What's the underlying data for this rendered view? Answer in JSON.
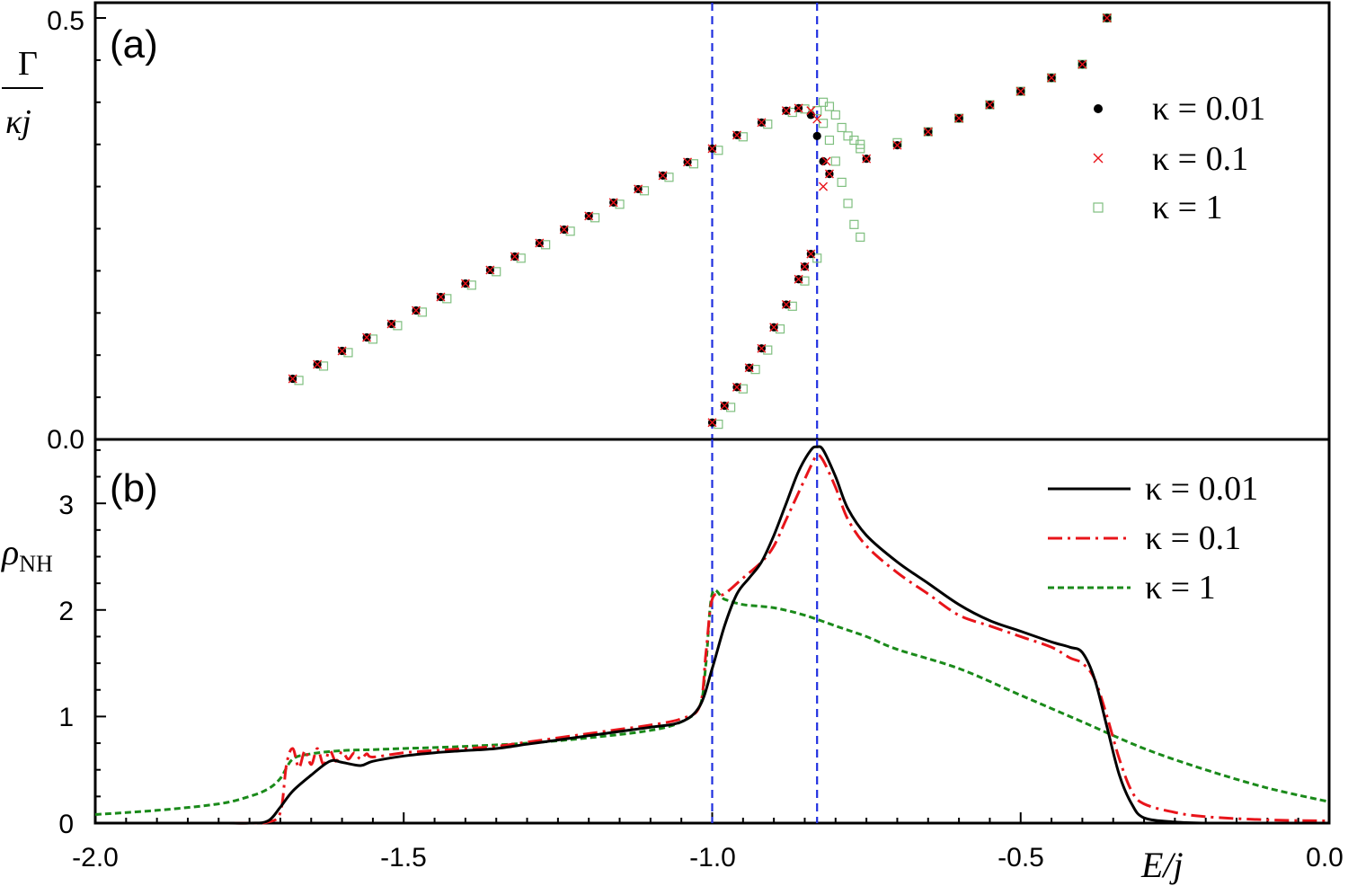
{
  "chart_data": [
    {
      "type": "scatter",
      "panel_label": "(a)",
      "ylabel": "Γ/κj",
      "xlim": [
        -2.0,
        0.0
      ],
      "ylim": [
        0.0,
        0.5
      ],
      "y_ticks": [
        "0.0",
        "0.5"
      ],
      "legend": {
        "position": "right",
        "entries": [
          "κ = 0.01",
          "κ = 0.1",
          "κ = 1"
        ]
      },
      "reference_lines_x": [
        -1.0,
        -0.83
      ],
      "colors": {
        "k001": "#000000",
        "k01": "#e8141a",
        "k1": "#7fbf7f",
        "ref": "#1f2fe0"
      },
      "series": [
        {
          "name": "κ = 0.01",
          "marker": "dot",
          "branches": [
            {
              "x": [
                -1.68,
                -1.64,
                -1.6,
                -1.56,
                -1.52,
                -1.48,
                -1.44,
                -1.4,
                -1.36,
                -1.32,
                -1.28,
                -1.24,
                -1.2,
                -1.16,
                -1.12,
                -1.08,
                -1.04,
                -1.0,
                -0.96,
                -0.92,
                -0.88,
                -0.86,
                -0.84
              ],
              "y": [
                0.072,
                0.089,
                0.105,
                0.121,
                0.137,
                0.153,
                0.169,
                0.185,
                0.201,
                0.217,
                0.233,
                0.249,
                0.265,
                0.281,
                0.297,
                0.313,
                0.329,
                0.345,
                0.361,
                0.376,
                0.39,
                0.393,
                0.385
              ]
            },
            {
              "x": [
                -1.0,
                -0.98,
                -0.96,
                -0.94,
                -0.92,
                -0.9,
                -0.88,
                -0.86,
                -0.85,
                -0.84
              ],
              "y": [
                0.02,
                0.04,
                0.062,
                0.085,
                0.108,
                0.133,
                0.16,
                0.19,
                0.205,
                0.22
              ]
            },
            {
              "x": [
                -0.83,
                -0.82,
                -0.81
              ],
              "y": [
                0.36,
                0.33,
                0.315
              ]
            },
            {
              "x": [
                -0.81,
                -0.75,
                -0.7,
                -0.65,
                -0.6,
                -0.55,
                -0.5,
                -0.45,
                -0.4,
                -0.36
              ],
              "y": [
                0.315,
                0.333,
                0.349,
                0.365,
                0.381,
                0.397,
                0.413,
                0.429,
                0.445,
                0.5
              ]
            }
          ]
        },
        {
          "name": "κ = 0.1",
          "marker": "cross",
          "branches": [
            {
              "x": [
                -1.68,
                -1.64,
                -1.6,
                -1.56,
                -1.52,
                -1.48,
                -1.44,
                -1.4,
                -1.36,
                -1.32,
                -1.28,
                -1.24,
                -1.2,
                -1.16,
                -1.12,
                -1.08,
                -1.04,
                -1.0,
                -0.96,
                -0.92,
                -0.88,
                -0.86,
                -0.84
              ],
              "y": [
                0.072,
                0.089,
                0.105,
                0.121,
                0.137,
                0.153,
                0.169,
                0.185,
                0.201,
                0.217,
                0.233,
                0.249,
                0.265,
                0.281,
                0.297,
                0.313,
                0.329,
                0.345,
                0.361,
                0.376,
                0.39,
                0.393,
                0.39
              ]
            },
            {
              "x": [
                -1.0,
                -0.98,
                -0.96,
                -0.94,
                -0.92,
                -0.9,
                -0.88,
                -0.86,
                -0.85,
                -0.84
              ],
              "y": [
                0.02,
                0.04,
                0.062,
                0.085,
                0.108,
                0.133,
                0.16,
                0.19,
                0.205,
                0.22
              ]
            },
            {
              "x": [
                -0.83,
                -0.82,
                -0.815
              ],
              "y": [
                0.38,
                0.3,
                0.33
              ]
            },
            {
              "x": [
                -0.81,
                -0.75,
                -0.7,
                -0.65,
                -0.6,
                -0.55,
                -0.5,
                -0.45,
                -0.4,
                -0.36
              ],
              "y": [
                0.315,
                0.333,
                0.349,
                0.365,
                0.381,
                0.397,
                0.413,
                0.429,
                0.445,
                0.5
              ]
            }
          ]
        },
        {
          "name": "κ = 1",
          "marker": "square",
          "branches": [
            {
              "x": [
                -1.67,
                -1.63,
                -1.59,
                -1.55,
                -1.51,
                -1.47,
                -1.43,
                -1.39,
                -1.35,
                -1.31,
                -1.27,
                -1.23,
                -1.19,
                -1.15,
                -1.11,
                -1.07,
                -1.03,
                -0.99,
                -0.95,
                -0.91,
                -0.87,
                -0.85
              ],
              "y": [
                0.07,
                0.087,
                0.103,
                0.119,
                0.135,
                0.151,
                0.167,
                0.183,
                0.199,
                0.215,
                0.231,
                0.247,
                0.263,
                0.279,
                0.295,
                0.311,
                0.327,
                0.343,
                0.359,
                0.374,
                0.388,
                0.392
              ]
            },
            {
              "x": [
                -0.99,
                -0.97,
                -0.95,
                -0.93,
                -0.91,
                -0.89,
                -0.87,
                -0.85,
                -0.83
              ],
              "y": [
                0.018,
                0.038,
                0.06,
                0.083,
                0.106,
                0.131,
                0.158,
                0.188,
                0.215
              ]
            },
            {
              "x": [
                -0.83,
                -0.82,
                -0.81,
                -0.8,
                -0.79,
                -0.78,
                -0.77,
                -0.76
              ],
              "y": [
                0.39,
                0.375,
                0.355,
                0.33,
                0.305,
                0.28,
                0.255,
                0.24
              ]
            },
            {
              "x": [
                -0.82,
                -0.81,
                -0.8,
                -0.79,
                -0.78,
                -0.77,
                -0.76
              ],
              "y": [
                0.4,
                0.395,
                0.385,
                0.37,
                0.36,
                0.355,
                0.35
              ]
            },
            {
              "x": [
                -0.76,
                -0.7,
                -0.65,
                -0.6,
                -0.55,
                -0.5,
                -0.45,
                -0.4,
                -0.36
              ],
              "y": [
                0.345,
                0.352,
                0.365,
                0.381,
                0.397,
                0.413,
                0.429,
                0.445,
                0.5
              ]
            }
          ]
        }
      ]
    },
    {
      "type": "line",
      "panel_label": "(b)",
      "ylabel": "ρNH",
      "ylabel_main": "ρ",
      "ylabel_sub": "NH",
      "xlabel": "E/j",
      "xlim": [
        -2.0,
        0.0
      ],
      "ylim": [
        0.0,
        3.5
      ],
      "x_ticks": [
        "-2.0",
        "-1.5",
        "-1.0",
        "-0.5",
        "0.0"
      ],
      "y_ticks": [
        "0",
        "1",
        "2",
        "3"
      ],
      "legend": {
        "position": "top-right",
        "entries": [
          "κ = 0.01",
          "κ = 0.1",
          "κ = 1"
        ]
      },
      "reference_lines_x": [
        -1.0,
        -0.83
      ],
      "colors": {
        "k001": "#000000",
        "k01": "#e8141a",
        "k1": "#1a8a1a",
        "ref": "#1f2fe0"
      },
      "series": [
        {
          "name": "κ = 0.01",
          "style": "solid",
          "x": [
            -2.0,
            -1.8,
            -1.75,
            -1.72,
            -1.7,
            -1.68,
            -1.65,
            -1.62,
            -1.6,
            -1.57,
            -1.55,
            -1.5,
            -1.45,
            -1.4,
            -1.35,
            -1.3,
            -1.25,
            -1.2,
            -1.15,
            -1.1,
            -1.05,
            -1.02,
            -1.0,
            -0.98,
            -0.96,
            -0.94,
            -0.92,
            -0.9,
            -0.88,
            -0.86,
            -0.84,
            -0.83,
            -0.82,
            -0.8,
            -0.78,
            -0.75,
            -0.7,
            -0.65,
            -0.6,
            -0.55,
            -0.5,
            -0.45,
            -0.42,
            -0.4,
            -0.38,
            -0.36,
            -0.34,
            -0.32,
            -0.3,
            -0.25,
            -0.2,
            -0.1,
            0.0
          ],
          "y": [
            0.0,
            0.0,
            0.0,
            0.02,
            0.15,
            0.3,
            0.45,
            0.58,
            0.57,
            0.54,
            0.58,
            0.63,
            0.66,
            0.68,
            0.7,
            0.74,
            0.78,
            0.82,
            0.86,
            0.9,
            0.95,
            1.1,
            1.45,
            1.85,
            2.15,
            2.3,
            2.45,
            2.7,
            3.0,
            3.3,
            3.5,
            3.53,
            3.5,
            3.25,
            2.95,
            2.7,
            2.45,
            2.25,
            2.05,
            1.9,
            1.8,
            1.7,
            1.65,
            1.6,
            1.35,
            0.9,
            0.45,
            0.18,
            0.05,
            0.01,
            0.0,
            0.0,
            0.0
          ]
        },
        {
          "name": "κ = 0.1",
          "style": "dash-dot",
          "x": [
            -2.0,
            -1.8,
            -1.75,
            -1.72,
            -1.7,
            -1.69,
            -1.68,
            -1.67,
            -1.66,
            -1.65,
            -1.64,
            -1.63,
            -1.62,
            -1.61,
            -1.6,
            -1.59,
            -1.58,
            -1.57,
            -1.56,
            -1.55,
            -1.5,
            -1.45,
            -1.4,
            -1.35,
            -1.3,
            -1.25,
            -1.2,
            -1.15,
            -1.1,
            -1.05,
            -1.02,
            -1.01,
            -1.0,
            -0.98,
            -0.95,
            -0.92,
            -0.9,
            -0.88,
            -0.86,
            -0.84,
            -0.83,
            -0.82,
            -0.8,
            -0.78,
            -0.75,
            -0.7,
            -0.65,
            -0.6,
            -0.55,
            -0.5,
            -0.45,
            -0.42,
            -0.4,
            -0.38,
            -0.36,
            -0.34,
            -0.32,
            -0.3,
            -0.25,
            -0.2,
            -0.1,
            0.0
          ],
          "y": [
            0.0,
            0.0,
            0.0,
            0.01,
            0.1,
            0.55,
            0.7,
            0.52,
            0.68,
            0.55,
            0.7,
            0.55,
            0.68,
            0.58,
            0.67,
            0.6,
            0.66,
            0.6,
            0.65,
            0.62,
            0.66,
            0.68,
            0.7,
            0.72,
            0.76,
            0.8,
            0.84,
            0.88,
            0.92,
            0.98,
            1.1,
            1.6,
            2.1,
            2.15,
            2.3,
            2.45,
            2.6,
            2.85,
            3.1,
            3.35,
            3.45,
            3.4,
            3.15,
            2.85,
            2.6,
            2.35,
            2.15,
            1.95,
            1.85,
            1.75,
            1.65,
            1.55,
            1.5,
            1.35,
            1.0,
            0.6,
            0.3,
            0.18,
            0.1,
            0.06,
            0.03,
            0.02
          ]
        },
        {
          "name": "κ = 1",
          "style": "dashed",
          "x": [
            -2.0,
            -1.9,
            -1.8,
            -1.75,
            -1.72,
            -1.7,
            -1.68,
            -1.65,
            -1.6,
            -1.55,
            -1.5,
            -1.4,
            -1.3,
            -1.2,
            -1.1,
            -1.05,
            -1.02,
            -1.01,
            -1.0,
            -0.98,
            -0.95,
            -0.9,
            -0.85,
            -0.8,
            -0.75,
            -0.7,
            -0.6,
            -0.5,
            -0.4,
            -0.3,
            -0.2,
            -0.1,
            0.0
          ],
          "y": [
            0.08,
            0.12,
            0.18,
            0.25,
            0.32,
            0.42,
            0.6,
            0.65,
            0.68,
            0.69,
            0.7,
            0.72,
            0.75,
            0.8,
            0.87,
            0.95,
            1.1,
            1.5,
            2.15,
            2.1,
            2.05,
            2.02,
            1.95,
            1.85,
            1.75,
            1.63,
            1.45,
            1.2,
            0.95,
            0.7,
            0.5,
            0.33,
            0.2
          ]
        }
      ]
    }
  ]
}
